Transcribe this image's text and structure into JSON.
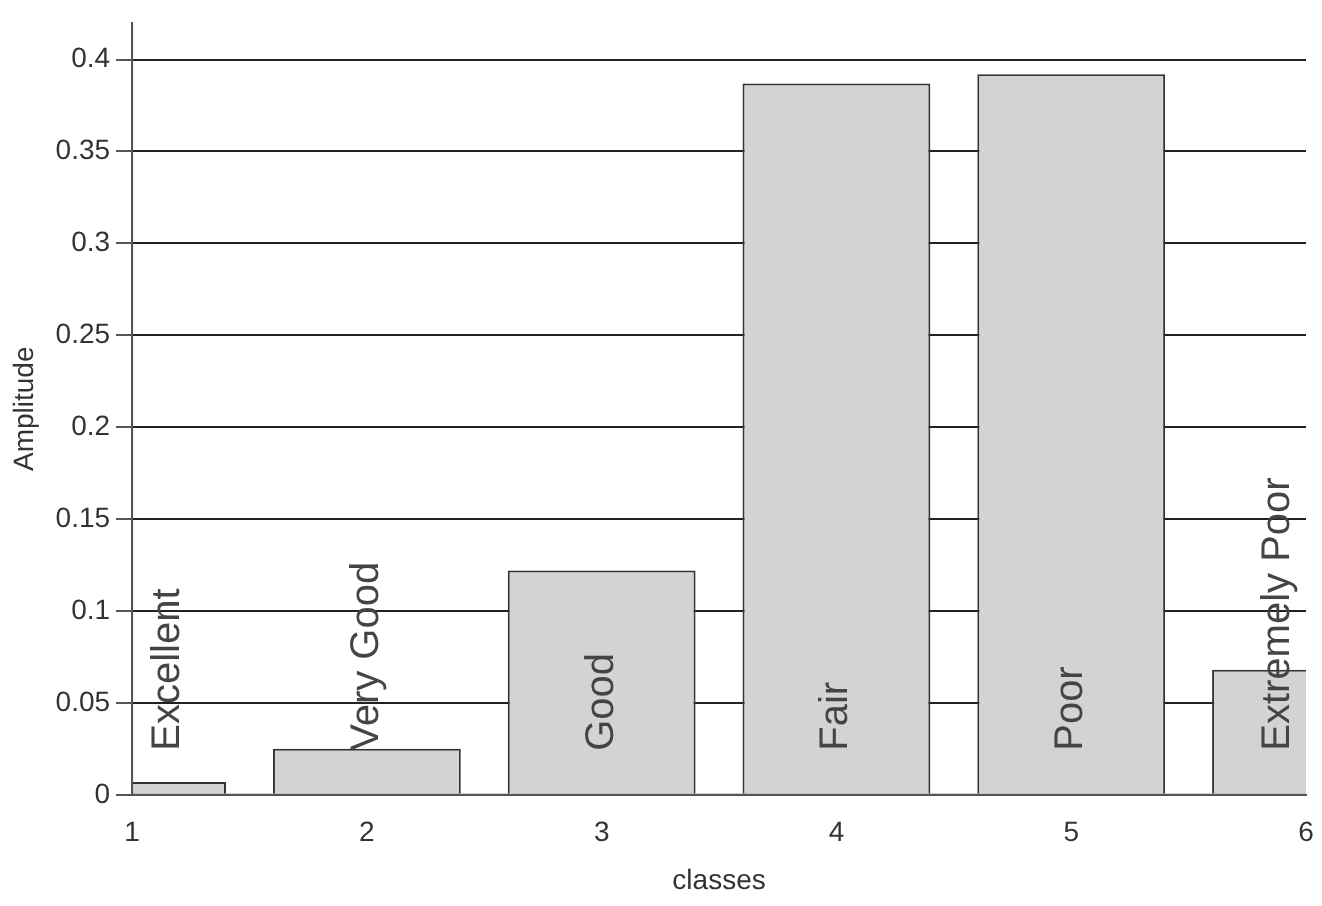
{
  "chart_data": {
    "type": "bar",
    "xlabel": "classes",
    "ylabel": "Amplitude",
    "x": [
      1,
      2,
      3,
      4,
      5,
      6
    ],
    "values": [
      0.007,
      0.025,
      0.122,
      0.387,
      0.392,
      0.068
    ],
    "color": "#d3d3d3",
    "xlim": [
      1,
      6
    ],
    "xticks": [
      1,
      2,
      3,
      4,
      5,
      6
    ],
    "ylim": [
      0,
      0.42
    ],
    "yticks": [
      0,
      0.05,
      0.1,
      0.15,
      0.2,
      0.25,
      0.3,
      0.35,
      0.4
    ],
    "grid": "y",
    "legend": false,
    "annotations": [
      "Excellent",
      "Very Good",
      "Good",
      "Fair",
      "Poor",
      "Extremely Poor"
    ]
  }
}
